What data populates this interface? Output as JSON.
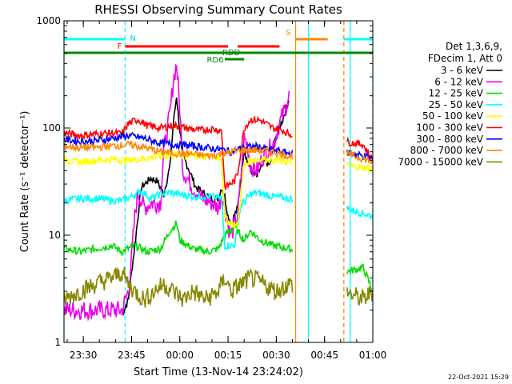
{
  "chart_data": {
    "type": "line",
    "title": "RHESSI Observing Summary Count Rates",
    "xlabel": "Start Time (13-Nov-14 23:24:02)",
    "ylabel": "Count Rate (s⁻¹ detector⁻¹)",
    "yscale": "log",
    "ylim": [
      1,
      1000
    ],
    "xlim": [
      0,
      96
    ],
    "x_unit": "minutes after 23:24:02",
    "xticks": [
      {
        "x": 6,
        "label": "23:30"
      },
      {
        "x": 21,
        "label": "23:45"
      },
      {
        "x": 36,
        "label": "00:00"
      },
      {
        "x": 51,
        "label": "00:15"
      },
      {
        "x": 66,
        "label": "00:30"
      },
      {
        "x": 81,
        "label": "00:45"
      },
      {
        "x": 96,
        "label": "01:00"
      }
    ],
    "yticks": [
      {
        "y": 1,
        "label": "1"
      },
      {
        "y": 10,
        "label": "10"
      },
      {
        "y": 100,
        "label": "100"
      },
      {
        "y": 1000,
        "label": "1000"
      }
    ],
    "legend": {
      "header": [
        "Det 1,3,6,9,",
        "FDecim 1, Att 0"
      ],
      "placement": "right"
    },
    "series": [
      {
        "name": "3 - 6 keV",
        "color": "#000000",
        "points": [
          [
            18,
            1.8
          ],
          [
            20,
            2.5
          ],
          [
            22,
            8
          ],
          [
            24,
            28
          ],
          [
            27,
            34
          ],
          [
            29,
            32
          ],
          [
            31,
            24
          ],
          [
            33,
            45
          ],
          [
            34,
            110
          ],
          [
            35,
            200
          ],
          [
            36,
            95
          ],
          [
            37,
            55
          ],
          [
            39,
            40
          ],
          [
            41,
            28
          ],
          [
            43,
            25
          ],
          [
            46,
            22
          ],
          [
            48,
            22
          ],
          [
            49,
            28
          ],
          [
            50,
            23
          ],
          [
            51,
            15
          ],
          [
            52,
            13
          ],
          [
            54,
            18
          ],
          [
            55,
            35
          ],
          [
            56,
            65
          ],
          [
            57,
            48
          ],
          [
            58,
            40
          ],
          [
            60,
            35
          ],
          [
            62,
            50
          ],
          [
            64,
            45
          ],
          [
            66,
            85
          ],
          [
            68,
            120
          ],
          [
            70,
            190
          ]
        ]
      },
      {
        "name": "6 - 12 keV",
        "color": "#ee00ee",
        "points": [
          [
            0,
            2
          ],
          [
            18,
            2
          ],
          [
            20,
            3
          ],
          [
            21,
            6
          ],
          [
            22,
            15
          ],
          [
            23,
            25
          ],
          [
            25,
            18
          ],
          [
            27,
            20
          ],
          [
            30,
            20
          ],
          [
            31,
            60
          ],
          [
            33,
            140
          ],
          [
            34,
            280
          ],
          [
            35,
            400
          ],
          [
            36,
            150
          ],
          [
            37,
            40
          ],
          [
            40,
            28
          ],
          [
            43,
            22
          ],
          [
            46,
            20
          ],
          [
            48,
            18
          ],
          [
            49,
            24
          ],
          [
            50,
            18
          ],
          [
            51,
            12
          ],
          [
            52,
            10
          ],
          [
            54,
            15
          ],
          [
            56,
            80
          ],
          [
            57,
            70
          ],
          [
            58,
            45
          ],
          [
            60,
            40
          ],
          [
            62,
            55
          ],
          [
            65,
            70
          ],
          [
            67,
            110
          ],
          [
            69,
            160
          ],
          [
            70,
            200
          ]
        ]
      },
      {
        "name": "12 - 25 keV",
        "color": "#00dd00",
        "points": [
          [
            0,
            7.5
          ],
          [
            5,
            7
          ],
          [
            10,
            7.5
          ],
          [
            15,
            8
          ],
          [
            18,
            7
          ],
          [
            20,
            7.5
          ],
          [
            22,
            8
          ],
          [
            26,
            7
          ],
          [
            30,
            7.5
          ],
          [
            33,
            11
          ],
          [
            35,
            13
          ],
          [
            36,
            9
          ],
          [
            40,
            7.5
          ],
          [
            45,
            7
          ],
          [
            48,
            7.5
          ],
          [
            50,
            10
          ],
          [
            53,
            12
          ],
          [
            56,
            9
          ],
          [
            58,
            11
          ],
          [
            61,
            9
          ],
          [
            65,
            8
          ],
          [
            70,
            7.5
          ],
          [
            87,
            4.5
          ],
          [
            93,
            5
          ],
          [
            96,
            3
          ]
        ]
      },
      {
        "name": "25 - 50 keV",
        "color": "#00ffff",
        "points": [
          [
            0,
            21
          ],
          [
            5,
            22
          ],
          [
            10,
            22
          ],
          [
            15,
            21
          ],
          [
            18,
            21
          ],
          [
            21,
            23
          ],
          [
            24,
            26
          ],
          [
            27,
            22
          ],
          [
            30,
            24
          ],
          [
            33,
            25
          ],
          [
            36,
            24
          ],
          [
            40,
            23
          ],
          [
            45,
            23
          ],
          [
            49,
            22
          ],
          [
            50,
            8
          ],
          [
            53,
            8
          ],
          [
            55,
            19
          ],
          [
            58,
            24
          ],
          [
            60,
            25
          ],
          [
            65,
            23
          ],
          [
            70,
            22
          ],
          [
            87,
            18
          ],
          [
            93,
            16
          ],
          [
            96,
            15
          ]
        ]
      },
      {
        "name": "50 - 100 keV",
        "color": "#ffff00",
        "points": [
          [
            0,
            50
          ],
          [
            5,
            48
          ],
          [
            10,
            50
          ],
          [
            15,
            51
          ],
          [
            20,
            50
          ],
          [
            25,
            52
          ],
          [
            30,
            55
          ],
          [
            35,
            56
          ],
          [
            40,
            55
          ],
          [
            45,
            54
          ],
          [
            49,
            53
          ],
          [
            50,
            14
          ],
          [
            54,
            12
          ],
          [
            56,
            45
          ],
          [
            58,
            50
          ],
          [
            62,
            52
          ],
          [
            65,
            50
          ],
          [
            70,
            48
          ],
          [
            87,
            45
          ],
          [
            93,
            43
          ],
          [
            96,
            42
          ]
        ]
      },
      {
        "name": "100 - 300 keV",
        "color": "#ff0000",
        "points": [
          [
            0,
            90
          ],
          [
            5,
            85
          ],
          [
            10,
            88
          ],
          [
            15,
            90
          ],
          [
            18,
            88
          ],
          [
            20,
            110
          ],
          [
            23,
            120
          ],
          [
            26,
            105
          ],
          [
            30,
            100
          ],
          [
            34,
            105
          ],
          [
            38,
            100
          ],
          [
            42,
            95
          ],
          [
            46,
            98
          ],
          [
            49,
            95
          ],
          [
            50,
            28
          ],
          [
            53,
            32
          ],
          [
            54,
            38
          ],
          [
            56,
            100
          ],
          [
            58,
            120
          ],
          [
            61,
            118
          ],
          [
            65,
            100
          ],
          [
            68,
            95
          ],
          [
            70,
            88
          ],
          [
            87,
            75
          ],
          [
            93,
            70
          ],
          [
            96,
            50
          ]
        ]
      },
      {
        "name": "300 - 800 keV",
        "color": "#0000ff",
        "points": [
          [
            0,
            78
          ],
          [
            5,
            75
          ],
          [
            10,
            76
          ],
          [
            15,
            80
          ],
          [
            20,
            85
          ],
          [
            25,
            80
          ],
          [
            30,
            72
          ],
          [
            35,
            70
          ],
          [
            40,
            68
          ],
          [
            45,
            65
          ],
          [
            49,
            63
          ],
          [
            52,
            60
          ],
          [
            56,
            66
          ],
          [
            60,
            67
          ],
          [
            65,
            62
          ],
          [
            70,
            58
          ],
          [
            87,
            60
          ],
          [
            93,
            55
          ],
          [
            96,
            52
          ]
        ]
      },
      {
        "name": "800 - 7000 keV",
        "color": "#ff8800",
        "points": [
          [
            0,
            68
          ],
          [
            5,
            65
          ],
          [
            10,
            66
          ],
          [
            15,
            68
          ],
          [
            20,
            70
          ],
          [
            25,
            66
          ],
          [
            30,
            60
          ],
          [
            35,
            58
          ],
          [
            40,
            57
          ],
          [
            45,
            55
          ],
          [
            50,
            58
          ],
          [
            55,
            62
          ],
          [
            60,
            62
          ],
          [
            65,
            60
          ],
          [
            70,
            55
          ],
          [
            87,
            58
          ],
          [
            93,
            52
          ],
          [
            96,
            48
          ]
        ]
      },
      {
        "name": "7000 - 15000 keV",
        "color": "#888800",
        "points": [
          [
            0,
            2.5
          ],
          [
            5,
            3
          ],
          [
            10,
            3.5
          ],
          [
            15,
            4
          ],
          [
            18,
            4.5
          ],
          [
            20,
            3.5
          ],
          [
            22,
            3
          ],
          [
            25,
            2.5
          ],
          [
            28,
            3
          ],
          [
            31,
            3.5
          ],
          [
            34,
            3
          ],
          [
            37,
            2.5
          ],
          [
            40,
            3
          ],
          [
            44,
            2.5
          ],
          [
            48,
            3
          ],
          [
            50,
            4
          ],
          [
            52,
            3
          ],
          [
            55,
            3.5
          ],
          [
            58,
            4
          ],
          [
            62,
            3.5
          ],
          [
            66,
            3
          ],
          [
            70,
            3.5
          ],
          [
            87,
            3
          ],
          [
            93,
            2.5
          ],
          [
            96,
            3
          ]
        ]
      }
    ],
    "state_bars": [
      {
        "label": "N",
        "color": "#00ffff",
        "level": "high",
        "intervals": [
          [
            0,
            19
          ]
        ]
      },
      {
        "label": "N",
        "color": "#00ffff",
        "level": "high",
        "intervals": [
          [
            87,
            96
          ]
        ]
      },
      {
        "label": "F",
        "color": "#ff0000",
        "level": "mid",
        "intervals": [
          [
            19,
            51
          ],
          [
            54,
            67
          ]
        ]
      },
      {
        "label": "RDD",
        "color": "#008800",
        "level": "low",
        "intervals": [
          [
            0,
            96
          ]
        ]
      },
      {
        "label": "RD6",
        "color": "#008800",
        "level": "lower",
        "intervals": [
          [
            50,
            56
          ]
        ]
      },
      {
        "label": "S",
        "color": "#ff8800",
        "level": "high",
        "intervals": [
          [
            72,
            82
          ]
        ]
      }
    ],
    "vertical_lines": [
      {
        "x": 0,
        "color": "#00ffff",
        "style": "solid"
      },
      {
        "x": 19,
        "color": "#00ffff",
        "style": "dashed"
      },
      {
        "x": 72,
        "color": "#ff8800",
        "style": "solid"
      },
      {
        "x": 76,
        "color": "#00ffff",
        "style": "solid"
      },
      {
        "x": 87,
        "color": "#ff8800",
        "style": "dashed"
      },
      {
        "x": 89,
        "color": "#00ffff",
        "style": "solid"
      },
      {
        "x": 96,
        "color": "#00ffff",
        "style": "dashed"
      }
    ],
    "gaps": [
      [
        71,
        88
      ]
    ],
    "footer_date": "22-Oct-2021 15:29"
  }
}
